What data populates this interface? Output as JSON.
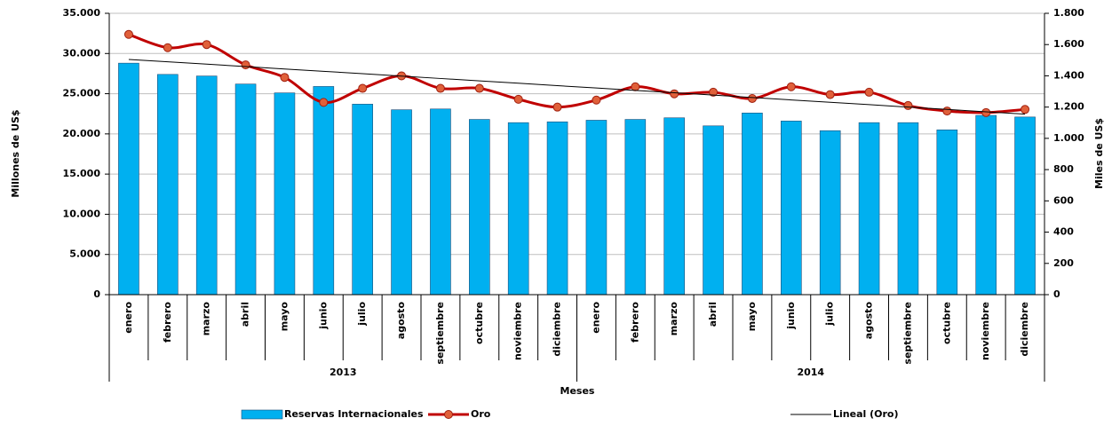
{
  "chart_data": {
    "type": "bar-line",
    "y_label": "Millones de US$",
    "y2_label": "Miles de US$",
    "x_label": "Meses",
    "category_groups": [
      {
        "label": "2013",
        "categories": [
          "enero",
          "febrero",
          "marzo",
          "abril",
          "mayo",
          "junio",
          "julio",
          "agosto",
          "septiembre",
          "octubre",
          "noviembre",
          "diciembre"
        ]
      },
      {
        "label": "2014",
        "categories": [
          "enero",
          "febrero",
          "marzo",
          "abril",
          "mayo",
          "junio",
          "julio",
          "agosto",
          "septiembre",
          "octubre",
          "noviembre",
          "diciembre"
        ]
      }
    ],
    "series": [
      {
        "name": "Reservas Internacionales",
        "type": "bar",
        "color": "#00b0f0",
        "values": [
          28800,
          27400,
          27200,
          26200,
          25100,
          25900,
          23700,
          23000,
          23100,
          21800,
          21400,
          21500,
          21700,
          21800,
          22000,
          21000,
          22600,
          21600,
          20400,
          21400,
          21400,
          20500,
          22300,
          22100
        ]
      },
      {
        "name": "Oro",
        "type": "line",
        "axis": "y2",
        "color": "#c00000",
        "values": [
          1665,
          1580,
          1600,
          1470,
          1390,
          1230,
          1320,
          1400,
          1320,
          1320,
          1250,
          1200,
          1245,
          1330,
          1285,
          1295,
          1255,
          1330,
          1280,
          1295,
          1210,
          1175,
          1165,
          1185
        ]
      },
      {
        "name": "Lineal (Oro)",
        "type": "trend",
        "axis": "y2",
        "color": "#000000",
        "values": [
          1505,
          1490,
          1475,
          1459,
          1444,
          1429,
          1414,
          1398,
          1383,
          1368,
          1353,
          1337,
          1322,
          1307,
          1292,
          1277,
          1261,
          1246,
          1231,
          1216,
          1200,
          1185,
          1170,
          1155
        ]
      }
    ],
    "ylim": [
      0,
      35000
    ],
    "yticks": [
      0,
      {
        "value": 5000,
        "label": "5.000"
      },
      {
        "value": 10000,
        "label": "10.000"
      },
      {
        "value": 15000,
        "label": "15.000"
      },
      {
        "value": 20000,
        "label": "20.000"
      },
      {
        "value": 25000,
        "label": "25.000"
      },
      {
        "value": 30000,
        "label": "30.000"
      },
      {
        "value": 35000,
        "label": "35.000"
      }
    ],
    "y2lim": [
      0,
      1800
    ],
    "y2ticks": [
      0,
      200,
      400,
      600,
      800,
      {
        "value": 1000,
        "label": "1.000"
      },
      {
        "value": 1200,
        "label": "1.200"
      },
      {
        "value": 1400,
        "label": "1.400"
      },
      {
        "value": 1600,
        "label": "1.600"
      },
      {
        "value": 1800,
        "label": "1.800"
      }
    ],
    "grid": true,
    "legend": "bottom"
  }
}
